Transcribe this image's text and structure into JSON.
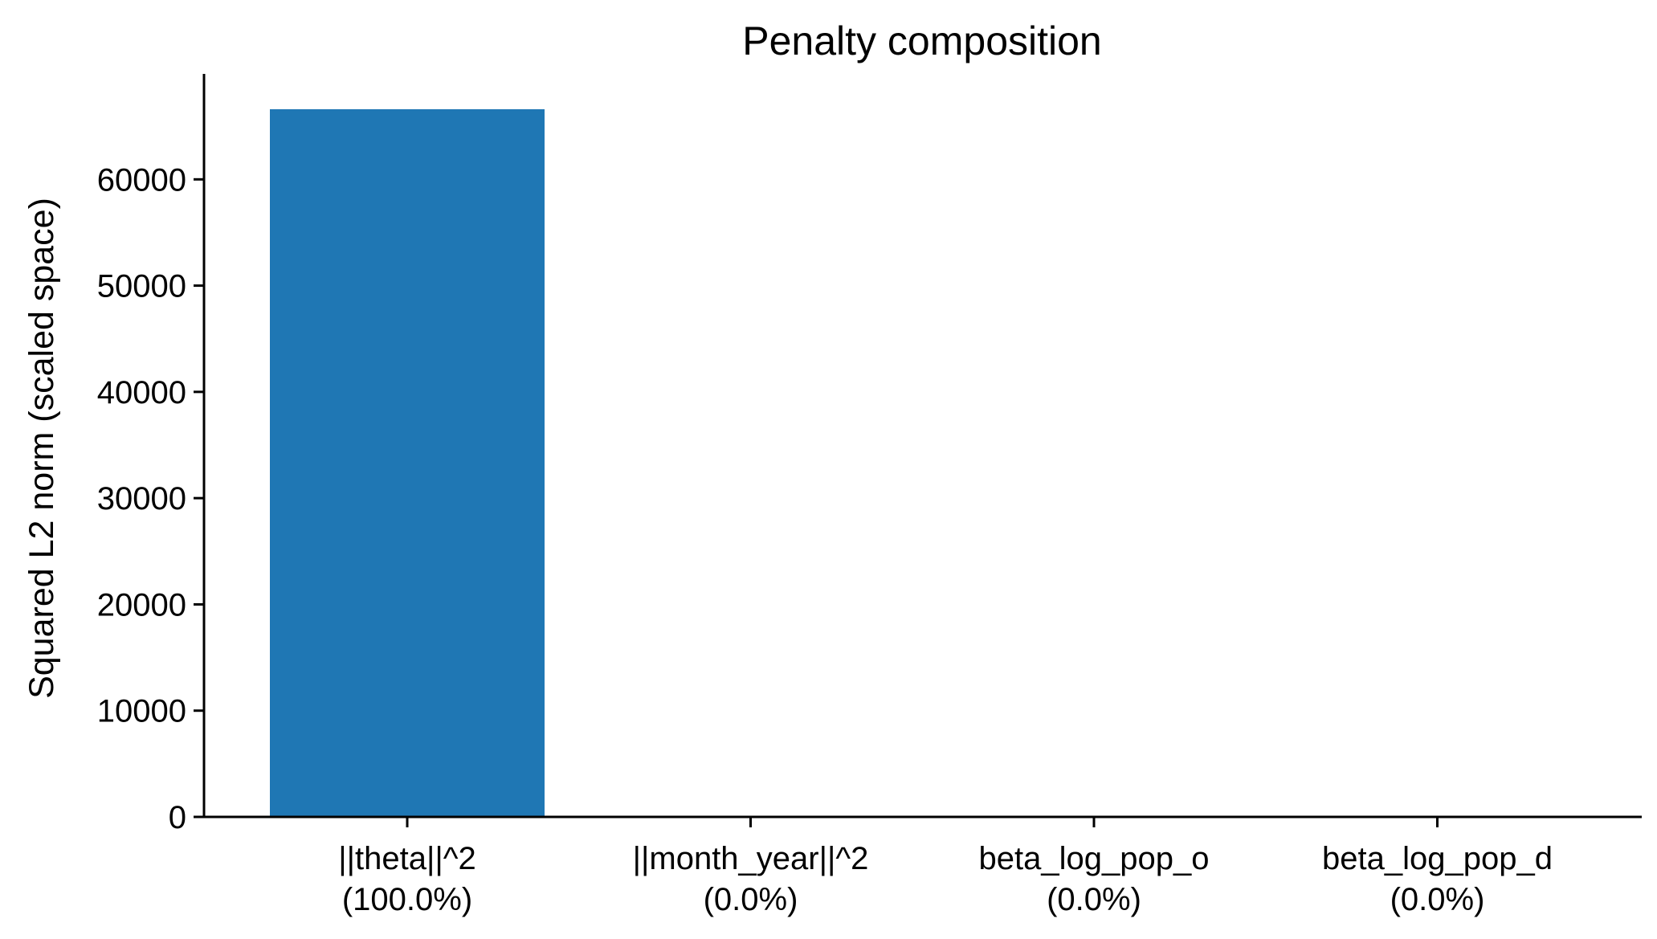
{
  "chart_data": {
    "type": "bar",
    "title": "Penalty composition",
    "xlabel": "",
    "ylabel": "Squared L2 norm (scaled space)",
    "categories": [
      "||theta||^2",
      "||month_year||^2",
      "beta_log_pop_o",
      "beta_log_pop_d"
    ],
    "category_shares": [
      "(100.0%)",
      "(0.0%)",
      "(0.0%)",
      "(0.0%)"
    ],
    "values": [
      66600,
      0,
      0,
      0
    ],
    "ylim": [
      0,
      70000
    ],
    "yticks": [
      0,
      10000,
      20000,
      30000,
      40000,
      50000,
      60000
    ],
    "grid": false,
    "bar_color": "#1f77b4"
  }
}
